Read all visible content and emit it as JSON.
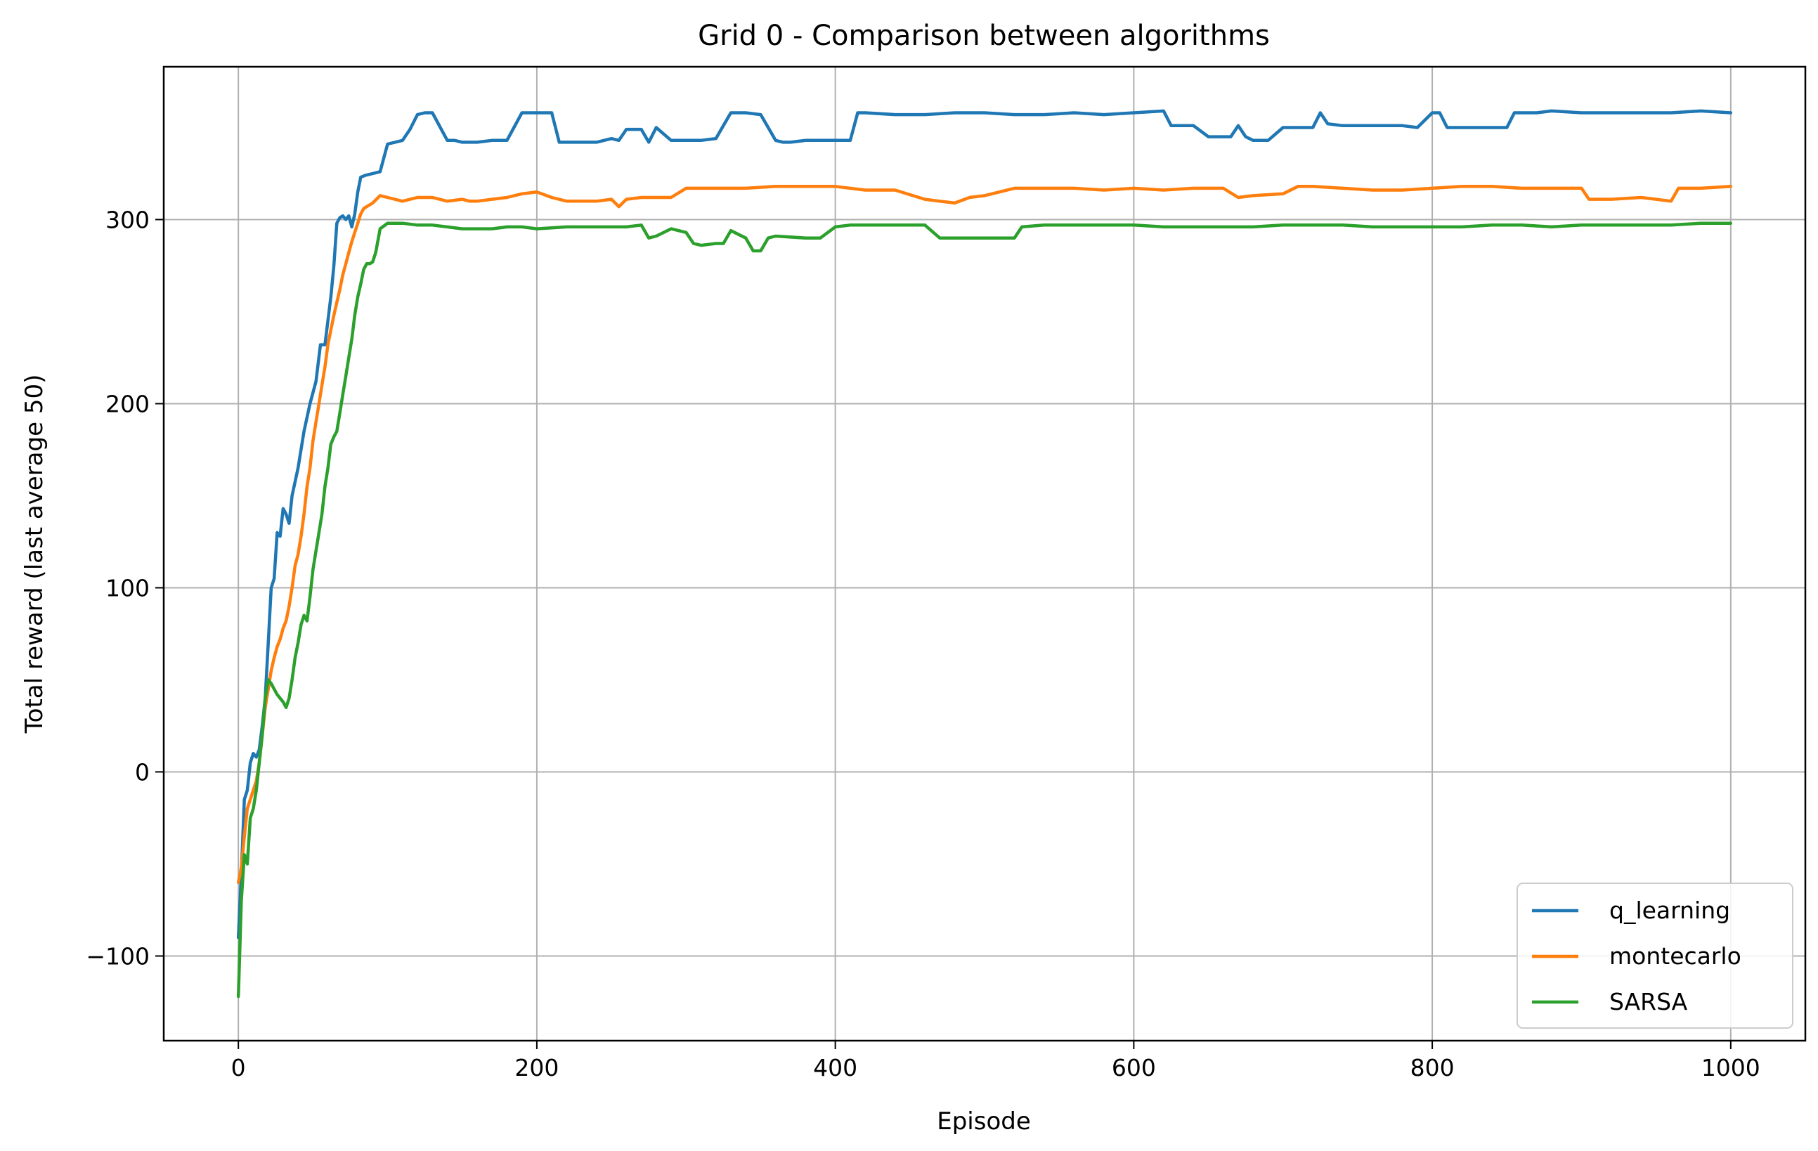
{
  "chart_data": {
    "type": "line",
    "title": "Grid 0 - Comparison between algorithms",
    "xlabel": "Episode",
    "ylabel": "Total reward (last average 50)",
    "xlim": [
      -50,
      1050
    ],
    "ylim": [
      -146,
      383
    ],
    "xticks": [
      0,
      200,
      400,
      600,
      800,
      1000
    ],
    "yticks": [
      -100,
      0,
      100,
      200,
      300
    ],
    "xtick_labels": [
      "0",
      "200",
      "400",
      "600",
      "800",
      "1000"
    ],
    "ytick_labels": [
      "−100",
      "0",
      "100",
      "200",
      "300"
    ],
    "grid": true,
    "legend_position": "lower-right",
    "series": [
      {
        "name": "q_learning",
        "color": "#1f77b4",
        "x": [
          0,
          2,
          4,
          6,
          8,
          10,
          12,
          14,
          16,
          18,
          20,
          22,
          24,
          26,
          28,
          30,
          32,
          34,
          36,
          40,
          44,
          48,
          52,
          55,
          58,
          60,
          62,
          64,
          66,
          68,
          70,
          72,
          74,
          76,
          78,
          80,
          82,
          85,
          90,
          95,
          100,
          105,
          110,
          115,
          120,
          125,
          130,
          140,
          145,
          150,
          160,
          170,
          180,
          190,
          195,
          200,
          210,
          215,
          220,
          230,
          240,
          250,
          255,
          260,
          270,
          275,
          280,
          290,
          300,
          310,
          320,
          325,
          330,
          340,
          350,
          360,
          365,
          370,
          380,
          390,
          400,
          410,
          415,
          420,
          440,
          460,
          480,
          500,
          520,
          540,
          560,
          580,
          600,
          620,
          625,
          640,
          650,
          660,
          665,
          670,
          675,
          680,
          690,
          700,
          710,
          720,
          725,
          730,
          740,
          760,
          780,
          790,
          800,
          805,
          810,
          820,
          830,
          840,
          850,
          855,
          860,
          870,
          880,
          900,
          920,
          940,
          960,
          980,
          1000
        ],
        "y": [
          -90,
          -55,
          -15,
          -10,
          5,
          10,
          8,
          12,
          25,
          40,
          70,
          100,
          105,
          130,
          128,
          143,
          140,
          135,
          150,
          165,
          185,
          200,
          212,
          232,
          232,
          245,
          258,
          275,
          298,
          301,
          302,
          300,
          302,
          296,
          303,
          315,
          323,
          324,
          325,
          326,
          341,
          342,
          343,
          349,
          357,
          358,
          358,
          343,
          343,
          342,
          342,
          343,
          343,
          358,
          358,
          358,
          358,
          342,
          342,
          342,
          342,
          344,
          343,
          349,
          349,
          342,
          350,
          343,
          343,
          343,
          344,
          351,
          358,
          358,
          357,
          343,
          342,
          342,
          343,
          343,
          343,
          343,
          358,
          358,
          357,
          357,
          358,
          358,
          357,
          357,
          358,
          357,
          358,
          359,
          351,
          351,
          345,
          345,
          345,
          351,
          345,
          343,
          343,
          350,
          350,
          350,
          358,
          352,
          351,
          351,
          351,
          350,
          358,
          358,
          350,
          350,
          350,
          350,
          350,
          358,
          358,
          358,
          359,
          358,
          358,
          358,
          358,
          359,
          358
        ]
      },
      {
        "name": "montecarlo",
        "color": "#ff7f0e",
        "x": [
          0,
          2,
          4,
          6,
          8,
          10,
          12,
          14,
          16,
          18,
          20,
          22,
          24,
          26,
          28,
          30,
          32,
          34,
          36,
          38,
          40,
          42,
          44,
          46,
          48,
          50,
          52,
          54,
          56,
          58,
          60,
          62,
          64,
          66,
          68,
          70,
          72,
          74,
          76,
          78,
          80,
          82,
          84,
          86,
          88,
          90,
          95,
          100,
          110,
          120,
          130,
          140,
          150,
          155,
          160,
          170,
          180,
          190,
          200,
          210,
          220,
          230,
          240,
          250,
          255,
          260,
          270,
          280,
          290,
          300,
          320,
          340,
          360,
          380,
          400,
          420,
          440,
          460,
          470,
          480,
          490,
          500,
          520,
          540,
          560,
          580,
          600,
          620,
          640,
          660,
          670,
          680,
          700,
          710,
          720,
          740,
          760,
          780,
          800,
          820,
          840,
          860,
          880,
          900,
          905,
          920,
          940,
          960,
          965,
          980,
          1000
        ],
        "y": [
          -60,
          -52,
          -35,
          -20,
          -15,
          -10,
          -5,
          5,
          20,
          35,
          45,
          55,
          62,
          68,
          72,
          78,
          82,
          90,
          100,
          112,
          118,
          128,
          140,
          155,
          165,
          180,
          190,
          200,
          210,
          220,
          232,
          240,
          248,
          255,
          262,
          270,
          276,
          282,
          288,
          293,
          298,
          303,
          306,
          307,
          308,
          309,
          313,
          312,
          310,
          312,
          312,
          310,
          311,
          310,
          310,
          311,
          312,
          314,
          315,
          312,
          310,
          310,
          310,
          311,
          307,
          311,
          312,
          312,
          312,
          317,
          317,
          317,
          318,
          318,
          318,
          316,
          316,
          311,
          310,
          309,
          312,
          313,
          317,
          317,
          317,
          316,
          317,
          316,
          317,
          317,
          312,
          313,
          314,
          318,
          318,
          317,
          316,
          316,
          317,
          318,
          318,
          317,
          317,
          317,
          311,
          311,
          312,
          310,
          317,
          317,
          318
        ]
      },
      {
        "name": "SARSA",
        "color": "#2ca02c",
        "x": [
          0,
          2,
          4,
          6,
          8,
          10,
          12,
          14,
          16,
          18,
          20,
          22,
          24,
          26,
          28,
          30,
          32,
          34,
          36,
          38,
          40,
          42,
          44,
          46,
          48,
          50,
          52,
          54,
          56,
          58,
          60,
          62,
          64,
          66,
          68,
          70,
          72,
          74,
          76,
          78,
          80,
          82,
          84,
          86,
          88,
          90,
          92,
          95,
          100,
          105,
          110,
          120,
          130,
          140,
          150,
          160,
          170,
          180,
          190,
          200,
          220,
          240,
          260,
          270,
          275,
          280,
          290,
          300,
          305,
          310,
          320,
          325,
          330,
          340,
          345,
          350,
          355,
          360,
          380,
          390,
          400,
          410,
          420,
          440,
          460,
          470,
          480,
          500,
          520,
          525,
          540,
          560,
          580,
          600,
          620,
          640,
          660,
          680,
          700,
          720,
          740,
          760,
          780,
          800,
          820,
          840,
          860,
          880,
          900,
          920,
          940,
          960,
          980,
          1000
        ],
        "y": [
          -122,
          -70,
          -45,
          -50,
          -25,
          -20,
          -10,
          5,
          20,
          40,
          50,
          48,
          45,
          42,
          40,
          38,
          35,
          40,
          50,
          62,
          70,
          80,
          85,
          82,
          95,
          110,
          120,
          130,
          140,
          155,
          165,
          178,
          182,
          185,
          195,
          205,
          215,
          225,
          235,
          248,
          258,
          265,
          273,
          276,
          276,
          277,
          282,
          295,
          298,
          298,
          298,
          297,
          297,
          296,
          295,
          295,
          295,
          296,
          296,
          295,
          296,
          296,
          296,
          297,
          290,
          291,
          295,
          293,
          287,
          286,
          287,
          287,
          294,
          290,
          283,
          283,
          290,
          291,
          290,
          290,
          296,
          297,
          297,
          297,
          297,
          290,
          290,
          290,
          290,
          296,
          297,
          297,
          297,
          297,
          296,
          296,
          296,
          296,
          297,
          297,
          297,
          296,
          296,
          296,
          296,
          297,
          297,
          296,
          297,
          297,
          297,
          297,
          298,
          298
        ]
      }
    ]
  }
}
